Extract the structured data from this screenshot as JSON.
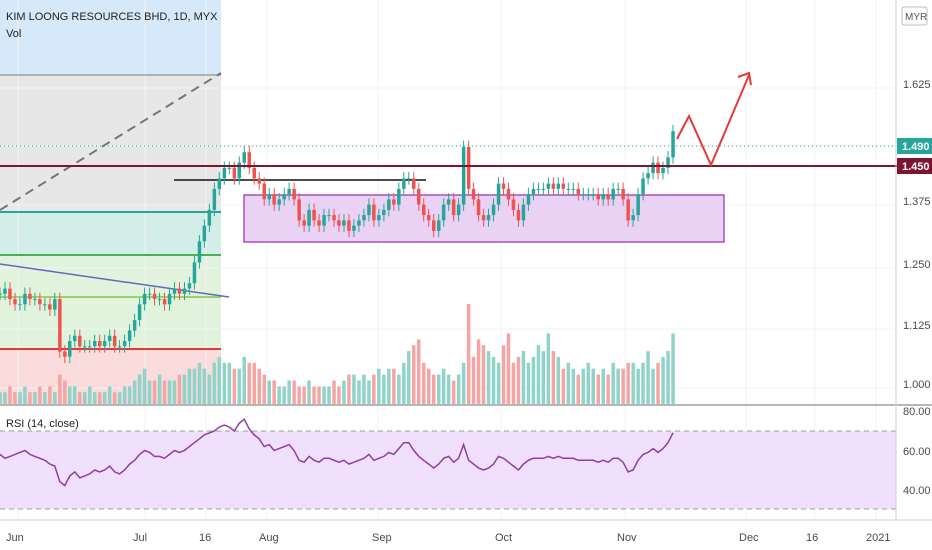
{
  "header": {
    "symbol_line": "KIM LOONG RESOURCES BHD, 1D, MYX",
    "volume_label": "Vol",
    "currency_button": "MYR"
  },
  "price_panel": {
    "y_ticks": [
      "1.625",
      "1.375",
      "1.250",
      "1.125",
      "1.000"
    ],
    "last_price_label": "1.490",
    "level_label": "1.450"
  },
  "rsi_panel": {
    "label": "RSI (14, close)",
    "y_ticks": [
      "80.00",
      "60.00",
      "40.00"
    ]
  },
  "time_axis": {
    "labels": [
      "Jun",
      "Jul",
      "16",
      "Aug",
      "Sep",
      "Oct",
      "Nov",
      "Dec",
      "16",
      "2021"
    ]
  },
  "colors": {
    "up": "#26a69a",
    "down": "#ef5350",
    "up_volume": "#8fd3c9",
    "down_volume": "#f5a6a4",
    "level_line": "#7b1533",
    "rsi_line": "#8e3fa0",
    "rsi_band": "#f0e0fb",
    "box_fill": "#e9d2f3",
    "box_stroke": "#9c27b0",
    "projection": "#e53935"
  },
  "chart_data": [
    {
      "type": "candlestick",
      "title": "KIM LOONG RESOURCES BHD, 1D, MYX",
      "currency": "MYR",
      "ylim": [
        0.97,
        1.74
      ],
      "x_labels": [
        "Jun",
        "Jul",
        "16",
        "Aug",
        "Sep",
        "Oct",
        "Nov",
        "Dec",
        "16",
        "2021"
      ],
      "close": [
        1.18,
        1.19,
        1.17,
        1.16,
        1.16,
        1.18,
        1.17,
        1.17,
        1.16,
        1.16,
        1.15,
        1.17,
        1.07,
        1.06,
        1.09,
        1.1,
        1.08,
        1.08,
        1.08,
        1.09,
        1.08,
        1.09,
        1.1,
        1.08,
        1.08,
        1.09,
        1.11,
        1.13,
        1.16,
        1.18,
        1.18,
        1.17,
        1.17,
        1.16,
        1.18,
        1.19,
        1.18,
        1.19,
        1.2,
        1.24,
        1.28,
        1.31,
        1.34,
        1.38,
        1.4,
        1.42,
        1.42,
        1.4,
        1.43,
        1.45,
        1.42,
        1.4,
        1.39,
        1.36,
        1.37,
        1.35,
        1.36,
        1.37,
        1.38,
        1.36,
        1.32,
        1.31,
        1.34,
        1.32,
        1.31,
        1.33,
        1.33,
        1.32,
        1.31,
        1.32,
        1.3,
        1.31,
        1.32,
        1.33,
        1.35,
        1.32,
        1.33,
        1.34,
        1.36,
        1.35,
        1.38,
        1.4,
        1.4,
        1.38,
        1.35,
        1.33,
        1.32,
        1.3,
        1.32,
        1.35,
        1.36,
        1.33,
        1.35,
        1.46,
        1.38,
        1.36,
        1.33,
        1.32,
        1.33,
        1.35,
        1.39,
        1.38,
        1.36,
        1.34,
        1.32,
        1.35,
        1.37,
        1.38,
        1.38,
        1.38,
        1.39,
        1.38,
        1.39,
        1.38,
        1.38,
        1.38,
        1.37,
        1.37,
        1.37,
        1.37,
        1.36,
        1.37,
        1.36,
        1.38,
        1.38,
        1.36,
        1.32,
        1.33,
        1.37,
        1.4,
        1.41,
        1.43,
        1.41,
        1.42,
        1.44,
        1.49
      ],
      "volume": [
        0.02,
        0.02,
        0.03,
        0.02,
        0.02,
        0.03,
        0.02,
        0.02,
        0.03,
        0.02,
        0.03,
        0.02,
        0.05,
        0.04,
        0.03,
        0.03,
        0.02,
        0.02,
        0.03,
        0.02,
        0.02,
        0.02,
        0.03,
        0.02,
        0.02,
        0.03,
        0.03,
        0.04,
        0.05,
        0.06,
        0.04,
        0.04,
        0.05,
        0.04,
        0.04,
        0.04,
        0.05,
        0.05,
        0.06,
        0.06,
        0.07,
        0.06,
        0.05,
        0.07,
        0.08,
        0.07,
        0.07,
        0.06,
        0.06,
        0.08,
        0.07,
        0.07,
        0.06,
        0.05,
        0.04,
        0.04,
        0.03,
        0.03,
        0.04,
        0.04,
        0.03,
        0.03,
        0.04,
        0.03,
        0.03,
        0.03,
        0.03,
        0.04,
        0.03,
        0.04,
        0.05,
        0.05,
        0.04,
        0.05,
        0.04,
        0.05,
        0.06,
        0.05,
        0.06,
        0.06,
        0.05,
        0.07,
        0.09,
        0.1,
        0.11,
        0.07,
        0.06,
        0.05,
        0.05,
        0.06,
        0.05,
        0.04,
        0.05,
        0.07,
        0.17,
        0.08,
        0.11,
        0.1,
        0.09,
        0.08,
        0.07,
        0.1,
        0.12,
        0.07,
        0.08,
        0.09,
        0.07,
        0.08,
        0.1,
        0.09,
        0.12,
        0.09,
        0.08,
        0.06,
        0.07,
        0.06,
        0.05,
        0.06,
        0.07,
        0.06,
        0.05,
        0.06,
        0.05,
        0.07,
        0.06,
        0.06,
        0.07,
        0.07,
        0.06,
        0.07,
        0.09,
        0.06,
        0.07,
        0.08,
        0.09,
        0.12
      ]
    },
    {
      "type": "line",
      "title": "RSI (14, close)",
      "ylim": [
        30,
        80
      ],
      "levels": [
        70,
        30
      ],
      "values": [
        58,
        56,
        57,
        58,
        59,
        60,
        58,
        57,
        56,
        55,
        53,
        52,
        44,
        42,
        47,
        49,
        46,
        47,
        48,
        50,
        49,
        50,
        52,
        49,
        48,
        50,
        53,
        55,
        58,
        60,
        59,
        57,
        57,
        56,
        58,
        60,
        59,
        60,
        62,
        64,
        66,
        68,
        69,
        70,
        72,
        73,
        72,
        70,
        74,
        76,
        71,
        68,
        66,
        62,
        63,
        60,
        61,
        62,
        63,
        60,
        55,
        54,
        57,
        55,
        54,
        56,
        56,
        55,
        54,
        55,
        53,
        54,
        55,
        56,
        58,
        55,
        56,
        57,
        59,
        58,
        61,
        64,
        64,
        60,
        57,
        55,
        53,
        51,
        53,
        56,
        57,
        54,
        56,
        63,
        55,
        53,
        51,
        50,
        51,
        53,
        57,
        56,
        54,
        52,
        50,
        53,
        55,
        56,
        56,
        56,
        57,
        56,
        57,
        56,
        56,
        56,
        55,
        55,
        55,
        55,
        54,
        55,
        54,
        56,
        56,
        54,
        49,
        50,
        55,
        58,
        59,
        61,
        59,
        61,
        64,
        69
      ]
    }
  ]
}
